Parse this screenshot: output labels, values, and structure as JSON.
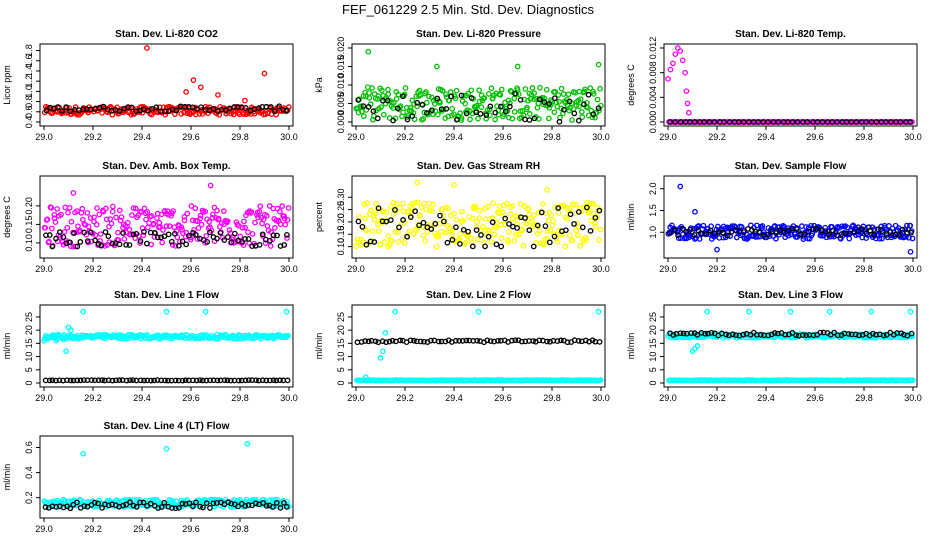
{
  "page": {
    "title": "FEF_061229  2.5 Min. Std. Dev. Diagnostics"
  },
  "chart_data": [
    {
      "type": "scatter",
      "title": "Stan. Dev. Li-820 CO2",
      "ylabel": "Licor ppm",
      "xlim": [
        29.0,
        30.0
      ],
      "ylim": [
        0.4,
        1.85
      ],
      "x_ticks": [
        "29.0",
        "29.2",
        "29.4",
        "29.6",
        "29.8",
        "30.0"
      ],
      "y_ticks": [
        "0.4",
        "0.6",
        "0.8",
        "1.0",
        "1.2",
        "1.4",
        "1.6",
        "1.8"
      ],
      "series": [
        {
          "name": "secondary",
          "color": "#ff0000",
          "base": 0.62,
          "spread": 0.08,
          "n": 220,
          "extra_x": [
            29.42,
            29.58,
            29.61,
            29.64,
            29.71,
            29.82,
            29.9
          ],
          "extra_y": [
            1.85,
            0.99,
            1.22,
            1.08,
            0.93,
            0.82,
            1.35
          ]
        },
        {
          "name": "primary",
          "color": "#000000",
          "base": 0.66,
          "spread": 0.05,
          "n": 60,
          "extra_x": [],
          "extra_y": []
        }
      ]
    },
    {
      "type": "scatter",
      "title": "Stan. Dev. Li-820 Pressure",
      "ylabel": "kPa",
      "xlim": [
        29.0,
        30.0
      ],
      "ylim": [
        0.0,
        0.02
      ],
      "x_ticks": [
        "29.0",
        "29.2",
        "29.4",
        "29.6",
        "29.8",
        "30.0"
      ],
      "y_ticks": [
        "0.000",
        "0.005",
        "0.010",
        "0.015",
        "0.020"
      ],
      "series": [
        {
          "name": "secondary",
          "color": "#00c000",
          "base": 0.005,
          "spread": 0.0045,
          "n": 260,
          "extra_x": [
            29.05,
            29.33,
            29.66,
            29.99
          ],
          "extra_y": [
            0.019,
            0.015,
            0.015,
            0.0155
          ]
        },
        {
          "name": "primary",
          "color": "#000000",
          "base": 0.004,
          "spread": 0.004,
          "n": 50,
          "extra_x": [],
          "extra_y": []
        }
      ]
    },
    {
      "type": "scatter",
      "title": "Stan. Dev. Li-820 Temp.",
      "ylabel": "degrees C",
      "xlim": [
        29.0,
        30.0
      ],
      "ylim": [
        0.0,
        0.012
      ],
      "x_ticks": [
        "29.0",
        "29.2",
        "29.4",
        "29.6",
        "29.8",
        "30.0"
      ],
      "y_ticks": [
        "0.000",
        "0.004",
        "0.008",
        "0.012"
      ],
      "series": [
        {
          "name": "secondary",
          "color": "#ff00ff",
          "base": 0.0,
          "spread": 0.0,
          "n": 160,
          "extra_x": [
            29.0,
            29.01,
            29.02,
            29.03,
            29.04,
            29.05,
            29.06,
            29.07,
            29.075,
            29.08,
            29.085
          ],
          "extra_y": [
            0.007,
            0.0085,
            0.0095,
            0.011,
            0.012,
            0.0115,
            0.01,
            0.008,
            0.005,
            0.003,
            0.0015
          ]
        },
        {
          "name": "primary",
          "color": "#000000",
          "base": 0.0,
          "spread": 0.0,
          "n": 50,
          "extra_x": [],
          "extra_y": []
        }
      ]
    },
    {
      "type": "scatter",
      "title": "Stan. Dev. Amb. Box Temp.",
      "ylabel": "degrees C",
      "xlim": [
        29.0,
        30.0
      ],
      "ylim": [
        0.07,
        0.27
      ],
      "x_ticks": [
        "29.0",
        "29.2",
        "29.4",
        "29.6",
        "29.8",
        "30.0"
      ],
      "y_ticks": [
        "0.10",
        "0.15",
        "0.20"
      ],
      "series": [
        {
          "name": "secondary",
          "color": "#ff00ff",
          "base": 0.145,
          "spread": 0.055,
          "n": 260,
          "extra_x": [
            29.12,
            29.68
          ],
          "extra_y": [
            0.235,
            0.255
          ]
        },
        {
          "name": "primary",
          "color": "#000000",
          "base": 0.11,
          "spread": 0.02,
          "n": 70,
          "extra_x": [],
          "extra_y": []
        }
      ]
    },
    {
      "type": "scatter",
      "title": "Stan. Dev. Gas Stream RH",
      "ylabel": "percent",
      "xlim": [
        29.0,
        30.0
      ],
      "ylim": [
        0.07,
        0.37
      ],
      "x_ticks": [
        "29.0",
        "29.2",
        "29.4",
        "29.6",
        "29.8",
        "30.0"
      ],
      "y_ticks": [
        "0.10",
        "0.15",
        "0.20",
        "0.25",
        "0.30"
      ],
      "series": [
        {
          "name": "secondary",
          "color": "#ffff00",
          "base": 0.19,
          "spread": 0.09,
          "n": 260,
          "extra_x": [
            29.25,
            29.4,
            29.78
          ],
          "extra_y": [
            0.36,
            0.35,
            0.33
          ]
        },
        {
          "name": "primary",
          "color": "#000000",
          "base": 0.18,
          "spread": 0.08,
          "n": 60,
          "extra_x": [],
          "extra_y": []
        }
      ]
    },
    {
      "type": "scatter",
      "title": "Stan. Dev. Sample Flow",
      "ylabel": "ml/min",
      "xlim": [
        29.0,
        30.0
      ],
      "ylim": [
        0.5,
        2.2
      ],
      "x_ticks": [
        "29.0",
        "29.2",
        "29.4",
        "29.6",
        "29.8",
        "30.0"
      ],
      "y_ticks": [
        "1.0",
        "1.5",
        "2.0"
      ],
      "series": [
        {
          "name": "secondary",
          "color": "#0000ff",
          "base": 1.0,
          "spread": 0.16,
          "n": 260,
          "extra_x": [
            29.05,
            29.11,
            29.2,
            29.99
          ],
          "extra_y": [
            2.05,
            1.47,
            0.6,
            0.55
          ]
        },
        {
          "name": "primary",
          "color": "#000000",
          "base": 1.0,
          "spread": 0.08,
          "n": 60,
          "extra_x": [],
          "extra_y": []
        }
      ]
    },
    {
      "type": "scatter",
      "title": "Stan. Dev. Line 1 Flow",
      "ylabel": "ml/min",
      "xlim": [
        29.0,
        30.0
      ],
      "ylim": [
        0,
        28
      ],
      "x_ticks": [
        "29.0",
        "29.2",
        "29.4",
        "29.6",
        "29.8",
        "30.0"
      ],
      "y_ticks": [
        "0",
        "5",
        "10",
        "15",
        "20",
        "25"
      ],
      "series": [
        {
          "name": "secondary",
          "color": "#00ffff",
          "base": 17.5,
          "spread": 0.8,
          "n": 240,
          "extra_x": [
            29.0,
            29.05,
            29.08,
            29.09,
            29.1,
            29.11,
            29.16,
            29.5,
            29.66,
            29.99
          ],
          "extra_y": [
            16,
            16,
            16.5,
            12,
            21,
            20,
            27,
            27,
            27,
            27
          ]
        },
        {
          "name": "primary",
          "color": "#000000",
          "base": 1.0,
          "spread": 0.1,
          "n": 70,
          "extra_x": [],
          "extra_y": []
        }
      ]
    },
    {
      "type": "scatter",
      "title": "Stan. Dev. Line 2 Flow",
      "ylabel": "ml/min",
      "xlim": [
        29.0,
        30.0
      ],
      "ylim": [
        0,
        28
      ],
      "x_ticks": [
        "29.0",
        "29.2",
        "29.4",
        "29.6",
        "29.8",
        "30.0"
      ],
      "y_ticks": [
        "0",
        "5",
        "10",
        "15",
        "20",
        "25"
      ],
      "series": [
        {
          "name": "secondary",
          "color": "#00ffff",
          "base": 1.0,
          "spread": 0.1,
          "n": 240,
          "extra_x": [
            29.04,
            29.1,
            29.11,
            29.12,
            29.16,
            29.5,
            29.99
          ],
          "extra_y": [
            2.2,
            9.5,
            12,
            19,
            27,
            27,
            27
          ]
        },
        {
          "name": "primary",
          "color": "#000000",
          "base": 15.8,
          "spread": 0.4,
          "n": 70,
          "extra_x": [],
          "extra_y": []
        }
      ]
    },
    {
      "type": "scatter",
      "title": "Stan. Dev. Line 3 Flow",
      "ylabel": "ml/min",
      "xlim": [
        29.0,
        30.0
      ],
      "ylim": [
        0,
        28
      ],
      "x_ticks": [
        "29.0",
        "29.2",
        "29.4",
        "29.6",
        "29.8",
        "30.0"
      ],
      "y_ticks": [
        "0",
        "5",
        "10",
        "15",
        "20",
        "25"
      ],
      "series": [
        {
          "name": "secondary",
          "color": "#00ffff",
          "base": 17.8,
          "spread": 0.7,
          "n": 240,
          "extra_x": [
            29.1,
            29.11,
            29.12,
            29.16,
            29.33,
            29.5,
            29.66,
            29.83,
            29.99
          ],
          "extra_y": [
            12,
            13,
            14,
            27,
            27,
            27,
            27,
            27,
            27
          ]
        },
        {
          "name": "primary",
          "color": "#000000",
          "base": 18.5,
          "spread": 0.6,
          "n": 70,
          "extra_x": [],
          "extra_y": []
        },
        {
          "name": "tertiary",
          "color": "#00ffff",
          "base": 1.0,
          "spread": 0.1,
          "n": 200,
          "extra_x": [],
          "extra_y": []
        }
      ]
    },
    {
      "type": "scatter",
      "title": "Stan. Dev. Line 4 (LT) Flow",
      "ylabel": "ml/min",
      "xlim": [
        29.0,
        30.0
      ],
      "ylim": [
        0.07,
        0.66
      ],
      "x_ticks": [
        "29.0",
        "29.2",
        "29.4",
        "29.6",
        "29.8",
        "30.0"
      ],
      "y_ticks": [
        "0.2",
        "0.4",
        "0.6"
      ],
      "series": [
        {
          "name": "secondary",
          "color": "#00ffff",
          "base": 0.155,
          "spread": 0.03,
          "n": 240,
          "extra_x": [
            29.16,
            29.5,
            29.83
          ],
          "extra_y": [
            0.55,
            0.59,
            0.63
          ]
        },
        {
          "name": "primary",
          "color": "#000000",
          "base": 0.14,
          "spread": 0.025,
          "n": 70,
          "extra_x": [],
          "extra_y": []
        }
      ]
    }
  ]
}
